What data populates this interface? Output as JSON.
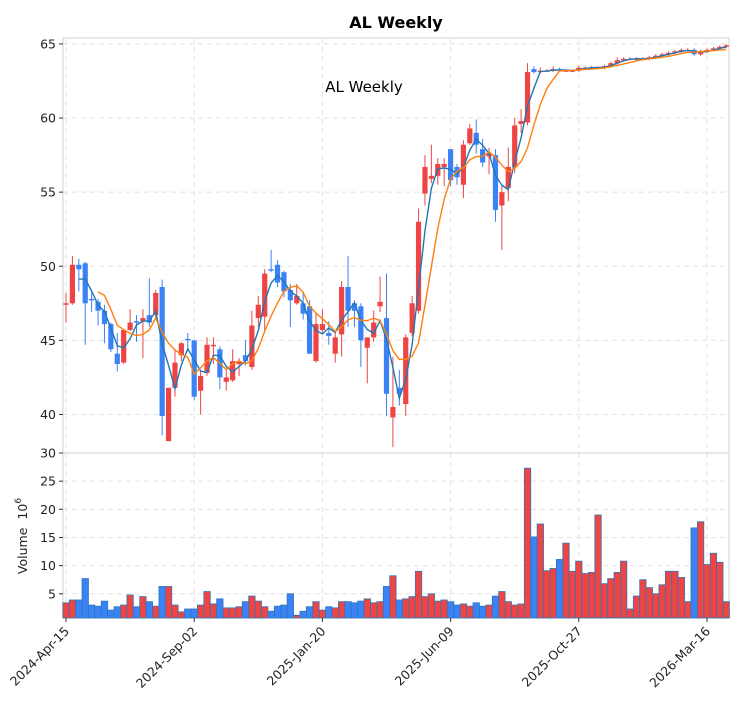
{
  "chart_data": {
    "type": "candlestick",
    "title": "AL  Weekly",
    "inner_title": "AL  Weekly",
    "ylabel_volume": "Volume",
    "volume_scale_base": "10",
    "volume_scale_exp": "6",
    "price_ylim": [
      37.4,
      65.4
    ],
    "price_yticks": [
      40,
      45,
      50,
      55,
      60,
      65
    ],
    "volume_ylim": [
      0.7,
      30
    ],
    "volume_yticks": [
      5,
      10,
      15,
      20,
      25,
      30
    ],
    "grid": true,
    "moving_averages": [
      3,
      6
    ],
    "colors": {
      "up": "#ef4444",
      "down": "#3b82f6",
      "volume_edge": "#2f78b8",
      "mav_short": "#1f77b4",
      "mav_long": "#ff7f0e",
      "grid": "#e3e3e3",
      "spine": "#cccccc"
    },
    "x_ticks": [
      {
        "index": 0,
        "label": "2024-Apr-15"
      },
      {
        "index": 20,
        "label": "2024-Sep-02"
      },
      {
        "index": 40,
        "label": "2025-Jan-20"
      },
      {
        "index": 60,
        "label": "2025-Jun-09"
      },
      {
        "index": 80,
        "label": "2025-Oct-27"
      },
      {
        "index": 100,
        "label": "2026-Mar-16"
      }
    ],
    "ohlc_fields": [
      "open",
      "high",
      "low",
      "close"
    ],
    "ohlc": [
      [
        47.4,
        48.2,
        46.2,
        47.5
      ],
      [
        47.5,
        50.7,
        47.4,
        50.1
      ],
      [
        50.1,
        50.5,
        48.3,
        49.8
      ],
      [
        50.2,
        50.3,
        44.7,
        47.5
      ],
      [
        47.8,
        48.3,
        46.9,
        47.7
      ],
      [
        47.6,
        47.8,
        46.0,
        47.0
      ],
      [
        47.0,
        47.4,
        44.8,
        46.1
      ],
      [
        46.1,
        46.2,
        44.2,
        44.4
      ],
      [
        44.1,
        45.5,
        42.9,
        43.4
      ],
      [
        43.5,
        45.7,
        43.4,
        45.7
      ],
      [
        45.7,
        47.1,
        45.6,
        46.2
      ],
      [
        46.3,
        46.7,
        44.9,
        46.2
      ],
      [
        46.3,
        47.1,
        43.8,
        46.5
      ],
      [
        46.7,
        49.2,
        45.9,
        46.2
      ],
      [
        46.7,
        48.4,
        46.5,
        48.2
      ],
      [
        48.6,
        49.1,
        38.6,
        39.9
      ],
      [
        38.2,
        41.8,
        38.2,
        41.8
      ],
      [
        41.8,
        44.4,
        41.2,
        43.5
      ],
      [
        44.0,
        44.9,
        43.6,
        44.8
      ],
      [
        45.1,
        45.5,
        44.3,
        45.0
      ],
      [
        45.0,
        45.0,
        41.0,
        41.2
      ],
      [
        41.6,
        42.9,
        40.0,
        42.6
      ],
      [
        42.8,
        45.2,
        42.6,
        44.7
      ],
      [
        44.6,
        45.2,
        43.4,
        44.7
      ],
      [
        44.4,
        44.6,
        41.7,
        42.5
      ],
      [
        42.2,
        43.1,
        41.6,
        42.5
      ],
      [
        42.3,
        44.4,
        42.2,
        43.6
      ],
      [
        43.4,
        43.8,
        42.6,
        43.6
      ],
      [
        44.0,
        45.0,
        43.3,
        43.6
      ],
      [
        43.2,
        47.0,
        43.0,
        46.0
      ],
      [
        46.5,
        48.0,
        45.9,
        47.4
      ],
      [
        46.6,
        49.8,
        45.6,
        49.5
      ],
      [
        49.8,
        51.1,
        49.6,
        49.7
      ],
      [
        50.1,
        50.4,
        48.6,
        48.9
      ],
      [
        49.6,
        49.7,
        47.9,
        48.3
      ],
      [
        48.4,
        48.8,
        45.9,
        47.7
      ],
      [
        47.5,
        48.8,
        47.4,
        48.0
      ],
      [
        47.5,
        48.2,
        46.4,
        46.8
      ],
      [
        47.3,
        47.7,
        44.1,
        44.1
      ],
      [
        43.6,
        46.8,
        43.5,
        46.1
      ],
      [
        45.7,
        47.1,
        45.5,
        46.1
      ],
      [
        45.5,
        46.3,
        44.7,
        45.3
      ],
      [
        44.1,
        45.5,
        43.5,
        45.2
      ],
      [
        45.4,
        49.0,
        43.9,
        48.6
      ],
      [
        48.6,
        50.7,
        45.9,
        47.0
      ],
      [
        47.5,
        47.7,
        45.9,
        47.0
      ],
      [
        47.3,
        47.5,
        43.2,
        45.0
      ],
      [
        44.5,
        45.2,
        42.1,
        45.2
      ],
      [
        45.2,
        47.0,
        44.9,
        46.2
      ],
      [
        47.3,
        49.3,
        46.9,
        47.6
      ],
      [
        46.5,
        49.5,
        39.9,
        41.4
      ],
      [
        39.8,
        43.9,
        37.8,
        40.5
      ],
      [
        41.8,
        43.0,
        40.6,
        41.4
      ],
      [
        40.7,
        45.4,
        39.9,
        45.2
      ],
      [
        45.5,
        48.0,
        45.3,
        47.5
      ],
      [
        47.0,
        53.9,
        46.8,
        53.0
      ],
      [
        54.9,
        57.5,
        54.1,
        56.7
      ],
      [
        55.9,
        58.2,
        55.6,
        56.1
      ],
      [
        56.1,
        57.3,
        55.5,
        56.9
      ],
      [
        56.7,
        57.3,
        55.4,
        56.9
      ],
      [
        57.9,
        57.9,
        55.4,
        55.8
      ],
      [
        56.7,
        56.9,
        55.5,
        56.0
      ],
      [
        55.5,
        58.5,
        54.6,
        58.2
      ],
      [
        58.3,
        59.6,
        58.2,
        59.3
      ],
      [
        59.0,
        59.9,
        57.6,
        58.2
      ],
      [
        57.9,
        58.6,
        56.7,
        57.0
      ],
      [
        57.4,
        58.0,
        56.2,
        57.6
      ],
      [
        57.5,
        57.9,
        53.0,
        53.8
      ],
      [
        54.1,
        55.4,
        51.1,
        55.0
      ],
      [
        55.3,
        58.0,
        54.4,
        56.7
      ],
      [
        56.7,
        60.0,
        56.3,
        59.5
      ],
      [
        59.6,
        60.6,
        59.0,
        59.8
      ],
      [
        59.7,
        63.7,
        59.5,
        63.1
      ],
      [
        63.3,
        63.5,
        63.0,
        63.1
      ],
      [
        63.1,
        63.4,
        63.0,
        63.2
      ],
      [
        63.2,
        63.3,
        63.1,
        63.2
      ],
      [
        63.2,
        63.5,
        63.1,
        63.3
      ],
      [
        63.3,
        63.4,
        63.1,
        63.2
      ],
      [
        63.2,
        63.3,
        63.1,
        63.2
      ],
      [
        63.2,
        63.3,
        63.1,
        63.2
      ],
      [
        63.2,
        63.5,
        63.1,
        63.4
      ],
      [
        63.4,
        63.5,
        63.3,
        63.4
      ],
      [
        63.4,
        63.5,
        63.3,
        63.4
      ],
      [
        63.4,
        63.5,
        63.3,
        63.4
      ],
      [
        63.4,
        63.6,
        63.3,
        63.5
      ],
      [
        63.5,
        63.8,
        63.4,
        63.7
      ],
      [
        63.7,
        64.1,
        63.6,
        63.9
      ],
      [
        63.9,
        64.1,
        63.8,
        64.0
      ],
      [
        64.0,
        64.1,
        63.9,
        64.0
      ],
      [
        64.0,
        64.1,
        63.9,
        64.0
      ],
      [
        64.0,
        64.1,
        63.9,
        64.0
      ],
      [
        64.0,
        64.2,
        63.9,
        64.1
      ],
      [
        64.1,
        64.3,
        64.0,
        64.2
      ],
      [
        64.2,
        64.4,
        64.1,
        64.3
      ],
      [
        64.3,
        64.5,
        64.2,
        64.4
      ],
      [
        64.4,
        64.6,
        64.3,
        64.5
      ],
      [
        64.5,
        64.7,
        64.4,
        64.6
      ],
      [
        64.6,
        64.7,
        64.5,
        64.6
      ],
      [
        64.6,
        64.7,
        64.2,
        64.3
      ],
      [
        64.3,
        64.6,
        64.2,
        64.5
      ],
      [
        64.5,
        64.7,
        64.4,
        64.6
      ],
      [
        64.6,
        64.8,
        64.5,
        64.7
      ],
      [
        64.7,
        64.9,
        64.6,
        64.8
      ],
      [
        64.8,
        65.0,
        64.7,
        64.9
      ]
    ],
    "volume_millions": [
      3.4,
      3.9,
      3.9,
      7.7,
      3.0,
      2.8,
      3.7,
      2.1,
      2.7,
      3.0,
      4.8,
      2.7,
      4.5,
      3.6,
      2.8,
      6.3,
      6.3,
      3.0,
      1.8,
      2.3,
      2.3,
      3.0,
      5.4,
      3.2,
      4.1,
      2.5,
      2.5,
      2.7,
      3.6,
      4.6,
      3.7,
      2.7,
      1.9,
      2.8,
      3.0,
      5.0,
      1.2,
      1.9,
      2.7,
      3.6,
      2.1,
      2.7,
      2.5,
      3.6,
      3.6,
      3.4,
      3.7,
      4.1,
      3.4,
      3.6,
      6.3,
      8.2,
      3.9,
      4.1,
      4.5,
      9.0,
      4.5,
      5.0,
      3.7,
      3.9,
      3.6,
      3.0,
      3.2,
      2.8,
      3.4,
      2.8,
      3.0,
      4.6,
      5.4,
      3.6,
      3.0,
      3.2,
      27.3,
      15.1,
      17.4,
      9.1,
      9.5,
      11.1,
      14.0,
      9.0,
      10.8,
      8.6,
      8.8,
      19.0,
      6.8,
      7.7,
      8.8,
      10.8,
      2.3,
      4.6,
      7.5,
      6.1,
      5.0,
      6.6,
      9.0,
      9.0,
      7.9,
      3.6,
      16.7,
      17.8,
      10.2,
      12.2,
      10.6,
      3.6
    ]
  }
}
